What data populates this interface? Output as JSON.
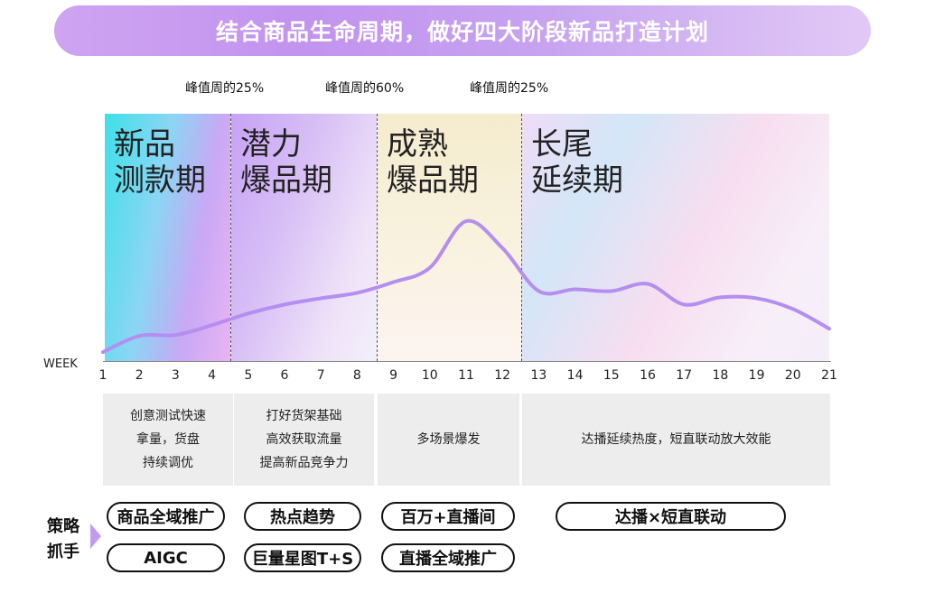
{
  "title": "结合商品生命周期，做好四大阶段新品打造计划",
  "peaks": [
    "峰值周的25%",
    "峰值周的60%",
    "峰值周的25%"
  ],
  "stages": [
    {
      "line1": "新品",
      "line2": "测款期"
    },
    {
      "line1": "潜力",
      "line2": "爆品期"
    },
    {
      "line1": "成熟",
      "line2": "爆品期"
    },
    {
      "line1": "长尾",
      "line2": "延续期"
    }
  ],
  "axis": {
    "label": "WEEK",
    "ticks": [
      "1",
      "2",
      "3",
      "4",
      "5",
      "6",
      "7",
      "8",
      "9",
      "10",
      "11",
      "12",
      "13",
      "14",
      "15",
      "16",
      "17",
      "18",
      "19",
      "20",
      "21"
    ]
  },
  "chart_data": {
    "type": "line",
    "xlabel": "WEEK",
    "x": [
      1,
      2,
      3,
      4,
      5,
      6,
      7,
      8,
      9,
      10,
      11,
      12,
      13,
      14,
      15,
      16,
      17,
      18,
      19,
      20,
      21
    ],
    "series": [
      {
        "values": [
          2,
          20,
          21,
          32,
          45,
          55,
          62,
          68,
          80,
          96,
          148,
          118,
          70,
          72,
          70,
          78,
          55,
          63,
          62,
          50,
          28
        ]
      }
    ],
    "color": "#b48ef0"
  },
  "strategies": [
    "创意测试快速\n拿量，货盘\n持续调优",
    "打好货架基础\n高效获取流量\n提高新品竞争力",
    "多场景爆发",
    "达播延续热度，短直联动放大效能"
  ],
  "side_label": "策略\n抓手",
  "pills": {
    "s1": [
      "商品全域推广",
      "AIGC"
    ],
    "s2": [
      "热点趋势",
      "巨量星图T+S"
    ],
    "s3": [
      "百万+直播间",
      "直播全域推广"
    ],
    "s4": [
      "达播×短直联动"
    ]
  }
}
